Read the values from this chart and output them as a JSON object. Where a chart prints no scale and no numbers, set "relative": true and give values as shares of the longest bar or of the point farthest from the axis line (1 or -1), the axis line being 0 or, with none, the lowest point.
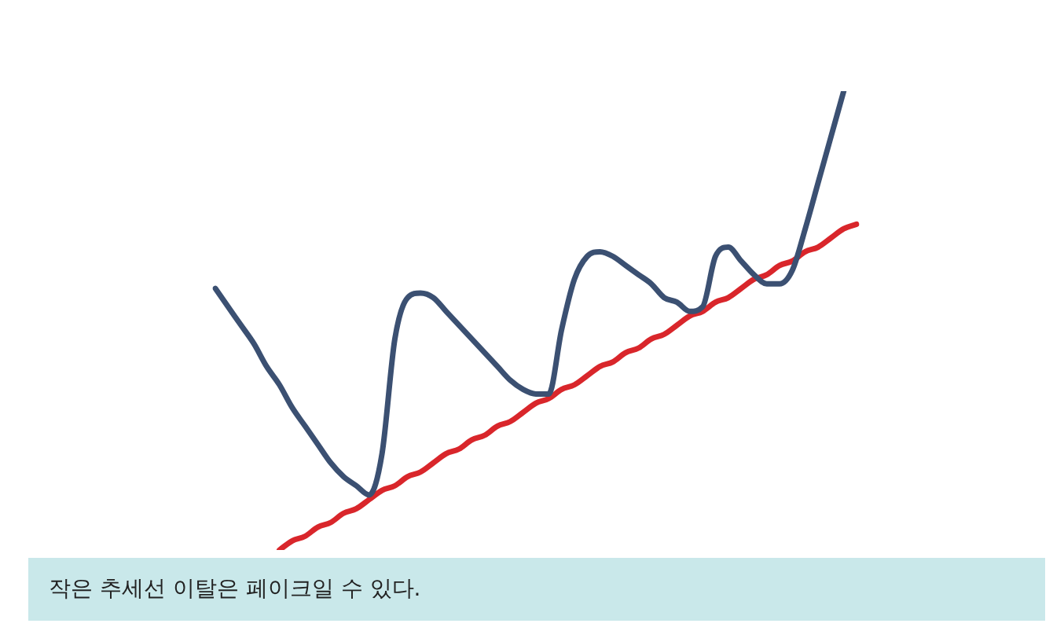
{
  "chart_data": {
    "type": "line",
    "relative": true,
    "categories": [
      null,
      null,
      null,
      null,
      null,
      null,
      null,
      null,
      null,
      null,
      null,
      null,
      null,
      null,
      null,
      null,
      null,
      null,
      null,
      null,
      null,
      null,
      null,
      null,
      null,
      null,
      null,
      null,
      null,
      null,
      null,
      null,
      null,
      null,
      null,
      null,
      null,
      null,
      null,
      null,
      null,
      null,
      null,
      null,
      null,
      null,
      null,
      null,
      null,
      null,
      null
    ],
    "series": [
      {
        "color": "#3b5072",
        "values": [
          0.57,
          0.53,
          0.49,
          0.45,
          0.4,
          0.36,
          0.31,
          0.27,
          0.23,
          0.19,
          0.16,
          0.14,
          0.12,
          0.21,
          0.46,
          0.55,
          0.56,
          0.55,
          0.52,
          0.49,
          0.46,
          0.43,
          0.4,
          0.37,
          0.35,
          0.34,
          0.34,
          0.48,
          0.59,
          0.64,
          0.65,
          0.64,
          0.62,
          0.6,
          0.58,
          0.55,
          0.54,
          0.52,
          0.53,
          0.64,
          0.66,
          0.63,
          0.6,
          0.58,
          0.58,
          0.61,
          0.7,
          0.8,
          0.9,
          1.0,
          null
        ]
      },
      {
        "color": "#d9262b",
        "values": [
          null,
          null,
          null,
          null,
          null,
          0,
          0.02,
          0.03,
          0.05,
          0.06,
          0.08,
          0.09,
          0.11,
          0.13,
          0.14,
          0.16,
          0.17,
          0.19,
          0.21,
          0.22,
          0.24,
          0.25,
          0.27,
          0.28,
          0.3,
          0.32,
          0.33,
          0.35,
          0.36,
          0.38,
          0.4,
          0.41,
          0.43,
          0.44,
          0.46,
          0.47,
          0.49,
          0.51,
          0.52,
          0.54,
          0.55,
          0.57,
          0.59,
          0.6,
          0.62,
          0.63,
          0.65,
          0.66,
          0.68,
          0.7,
          0.71
        ]
      }
    ],
    "annotations": [
      "작은 추세선 이탈은 페이크일 수 있다."
    ]
  }
}
